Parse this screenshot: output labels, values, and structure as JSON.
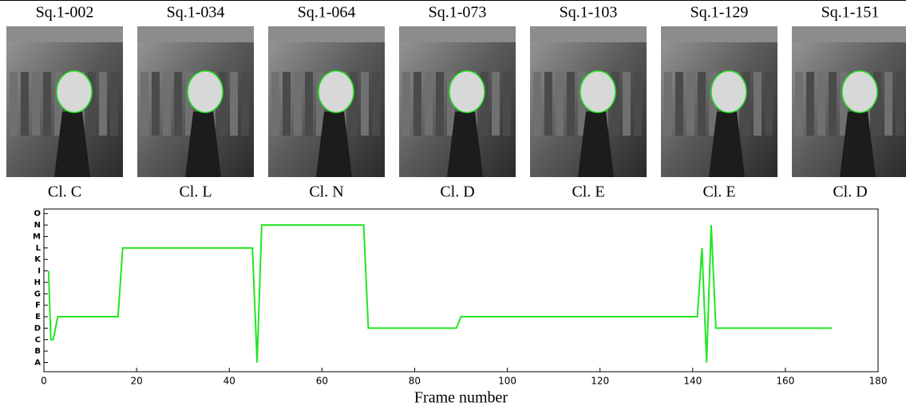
{
  "panels": [
    {
      "title": "Sq.1-002",
      "caption": "Cl. C"
    },
    {
      "title": "Sq.1-034",
      "caption": "Cl. L"
    },
    {
      "title": "Sq.1-064",
      "caption": "Cl. N"
    },
    {
      "title": "Sq.1-073",
      "caption": "Cl. D"
    },
    {
      "title": "Sq.1-103",
      "caption": "Cl. E"
    },
    {
      "title": "Sq.1-129",
      "caption": "Cl. E"
    },
    {
      "title": "Sq.1-151",
      "caption": "Cl. D"
    }
  ],
  "chart_data": {
    "type": "line",
    "x_label": "Frame number",
    "x": [
      1,
      1.5,
      2,
      3,
      16,
      17,
      45,
      46,
      47,
      69,
      70,
      89,
      90,
      141,
      142,
      143,
      144,
      145,
      170
    ],
    "series": [
      {
        "color": "#22e622",
        "values": [
          8,
          2,
          2,
          4,
          4,
          10,
          10,
          0,
          12,
          12,
          3,
          3,
          4,
          4,
          10,
          0,
          12,
          3,
          3
        ]
      }
    ],
    "xlim": [
      0,
      180
    ],
    "xticks": [
      0,
      20,
      40,
      60,
      80,
      100,
      120,
      140,
      160,
      180
    ],
    "ylim": [
      -0.8,
      13.4
    ],
    "yticks": [
      {
        "value": 0,
        "label": "A"
      },
      {
        "value": 1,
        "label": "B"
      },
      {
        "value": 2,
        "label": "C"
      },
      {
        "value": 3,
        "label": "D"
      },
      {
        "value": 4,
        "label": "E"
      },
      {
        "value": 5,
        "label": "F"
      },
      {
        "value": 6,
        "label": "G"
      },
      {
        "value": 7,
        "label": "H"
      },
      {
        "value": 8,
        "label": "I"
      },
      {
        "value": 9,
        "label": "K"
      },
      {
        "value": 10,
        "label": "L"
      },
      {
        "value": 11,
        "label": "M"
      },
      {
        "value": 12,
        "label": "N"
      },
      {
        "value": 13,
        "label": "O"
      }
    ]
  }
}
